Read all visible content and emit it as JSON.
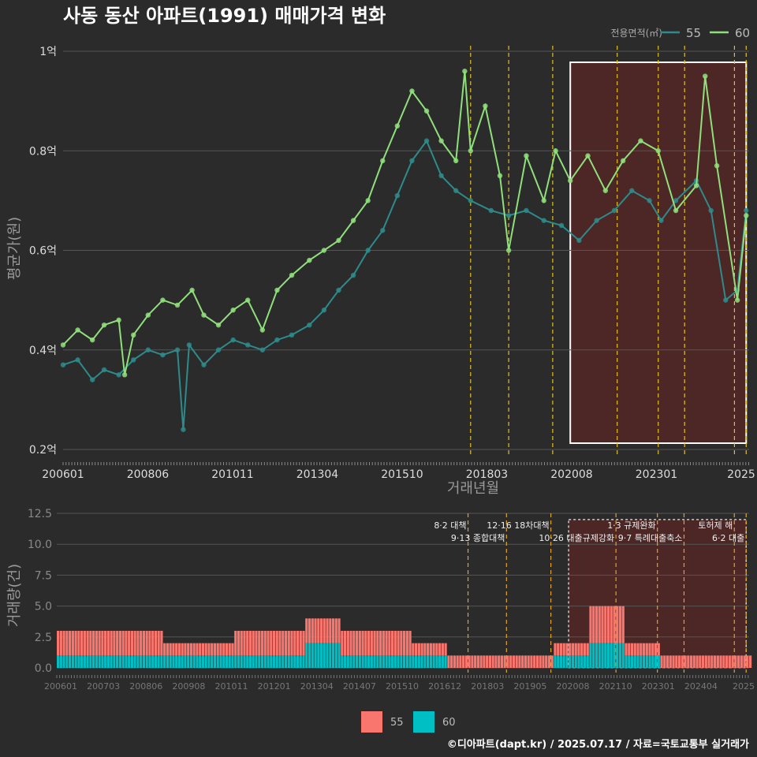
{
  "title": "사동 동산 아파트(1991) 매매가격 변화",
  "footer": "©디아파트(dapt.kr) / 2025.07.17 / 자료=국토교통부 실거래가",
  "colors": {
    "background": "#2b2b2b",
    "series55_price": "#2e8b8b",
    "series60_price": "#8fe07a",
    "series55_volume": "#f8766d",
    "series60_volume": "#00bfc4",
    "event_line": "#e6c21a",
    "highlight_fill": "#5a2525"
  },
  "chart_data": [
    {
      "type": "line",
      "title": "사동 동산 아파트(1991) 매매가격 변화",
      "xlabel": "거래년월",
      "ylabel": "평균가(원)",
      "legend_title": "전용면적(㎡)",
      "legend_position": "top-right",
      "x_tick_labels": [
        "200601",
        "200806",
        "201011",
        "201304",
        "201510",
        "201803",
        "202008",
        "202301",
        "2025"
      ],
      "y_tick_labels": [
        "0.2억",
        "0.4억",
        "0.6억",
        "0.8억",
        "1억"
      ],
      "ylim": [
        0.2,
        1.0
      ],
      "y_unit": "억",
      "grid": true,
      "highlight_range": [
        "2020-06",
        "2025-06"
      ],
      "event_dates": [
        "2017-08",
        "2018-09",
        "2019-12",
        "2021-10",
        "2022-12",
        "2023-09",
        "2025-02",
        "2025-06"
      ],
      "series": [
        {
          "name": "55",
          "points": [
            [
              "2006-01",
              0.37
            ],
            [
              "2006-06",
              0.38
            ],
            [
              "2006-11",
              0.34
            ],
            [
              "2007-03",
              0.36
            ],
            [
              "2007-08",
              0.35
            ],
            [
              "2008-01",
              0.38
            ],
            [
              "2008-06",
              0.4
            ],
            [
              "2008-11",
              0.39
            ],
            [
              "2009-04",
              0.4
            ],
            [
              "2009-06",
              0.24
            ],
            [
              "2009-08",
              0.41
            ],
            [
              "2010-01",
              0.37
            ],
            [
              "2010-06",
              0.4
            ],
            [
              "2010-11",
              0.42
            ],
            [
              "2011-04",
              0.41
            ],
            [
              "2011-09",
              0.4
            ],
            [
              "2012-02",
              0.42
            ],
            [
              "2012-07",
              0.43
            ],
            [
              "2013-01",
              0.45
            ],
            [
              "2013-06",
              0.48
            ],
            [
              "2013-11",
              0.52
            ],
            [
              "2014-04",
              0.55
            ],
            [
              "2014-09",
              0.6
            ],
            [
              "2015-02",
              0.64
            ],
            [
              "2015-07",
              0.71
            ],
            [
              "2015-12",
              0.78
            ],
            [
              "2016-05",
              0.82
            ],
            [
              "2016-10",
              0.75
            ],
            [
              "2017-03",
              0.72
            ],
            [
              "2017-08",
              0.7
            ],
            [
              "2018-03",
              0.68
            ],
            [
              "2018-09",
              0.67
            ],
            [
              "2019-03",
              0.68
            ],
            [
              "2019-09",
              0.66
            ],
            [
              "2020-03",
              0.65
            ],
            [
              "2020-09",
              0.62
            ],
            [
              "2021-03",
              0.66
            ],
            [
              "2021-09",
              0.68
            ],
            [
              "2022-03",
              0.72
            ],
            [
              "2022-09",
              0.7
            ],
            [
              "2023-01",
              0.66
            ],
            [
              "2023-06",
              0.7
            ],
            [
              "2024-01",
              0.74
            ],
            [
              "2024-06",
              0.68
            ],
            [
              "2024-11",
              0.5
            ],
            [
              "2025-03",
              0.52
            ],
            [
              "2025-06",
              0.68
            ]
          ]
        },
        {
          "name": "60",
          "points": [
            [
              "2006-01",
              0.41
            ],
            [
              "2006-06",
              0.44
            ],
            [
              "2006-11",
              0.42
            ],
            [
              "2007-03",
              0.45
            ],
            [
              "2007-08",
              0.46
            ],
            [
              "2007-10",
              0.35
            ],
            [
              "2008-01",
              0.43
            ],
            [
              "2008-06",
              0.47
            ],
            [
              "2008-11",
              0.5
            ],
            [
              "2009-04",
              0.49
            ],
            [
              "2009-09",
              0.52
            ],
            [
              "2010-01",
              0.47
            ],
            [
              "2010-06",
              0.45
            ],
            [
              "2010-11",
              0.48
            ],
            [
              "2011-04",
              0.5
            ],
            [
              "2011-09",
              0.44
            ],
            [
              "2012-02",
              0.52
            ],
            [
              "2012-07",
              0.55
            ],
            [
              "2013-01",
              0.58
            ],
            [
              "2013-06",
              0.6
            ],
            [
              "2013-11",
              0.62
            ],
            [
              "2014-04",
              0.66
            ],
            [
              "2014-09",
              0.7
            ],
            [
              "2015-02",
              0.78
            ],
            [
              "2015-07",
              0.85
            ],
            [
              "2015-12",
              0.92
            ],
            [
              "2016-05",
              0.88
            ],
            [
              "2016-10",
              0.82
            ],
            [
              "2017-03",
              0.78
            ],
            [
              "2017-06",
              0.96
            ],
            [
              "2017-08",
              0.8
            ],
            [
              "2018-01",
              0.89
            ],
            [
              "2018-06",
              0.75
            ],
            [
              "2018-09",
              0.6
            ],
            [
              "2019-03",
              0.79
            ],
            [
              "2019-09",
              0.7
            ],
            [
              "2020-01",
              0.8
            ],
            [
              "2020-06",
              0.74
            ],
            [
              "2020-12",
              0.79
            ],
            [
              "2021-06",
              0.72
            ],
            [
              "2021-12",
              0.78
            ],
            [
              "2022-06",
              0.82
            ],
            [
              "2022-12",
              0.8
            ],
            [
              "2023-06",
              0.68
            ],
            [
              "2024-01",
              0.73
            ],
            [
              "2024-04",
              0.95
            ],
            [
              "2024-08",
              0.77
            ],
            [
              "2025-03",
              0.5
            ],
            [
              "2025-06",
              0.67
            ]
          ]
        }
      ]
    },
    {
      "type": "bar",
      "xlabel": "",
      "ylabel": "거래량(건)",
      "stacked": true,
      "legend_position": "bottom",
      "x_tick_labels": [
        "200601",
        "200703",
        "200806",
        "200908",
        "201011",
        "201201",
        "201304",
        "201407",
        "201510",
        "201612",
        "201803",
        "201905",
        "202008",
        "202110",
        "202301",
        "202404",
        "2025"
      ],
      "y_tick_labels": [
        "0.0",
        "2.5",
        "5.0",
        "7.5",
        "10.0",
        "12.5"
      ],
      "ylim": [
        0,
        12.5
      ],
      "annotations": [
        {
          "date": "2017-08",
          "label": "8·2 대책"
        },
        {
          "date": "2018-09",
          "label": "9·13 종합대책"
        },
        {
          "date": "2019-12",
          "label": "12·16 18차대책"
        },
        {
          "date": "2021-10",
          "label": "10·26 대출규제강화"
        },
        {
          "date": "2022-12",
          "label": "1·3 규제완화"
        },
        {
          "date": "2023-09",
          "label": "9·7 특례대출축소"
        },
        {
          "date": "2025-02",
          "label": "토허제 해"
        },
        {
          "date": "2025-06",
          "label": "6·2 대출"
        }
      ],
      "series": [
        {
          "name": "55",
          "values_by_year": {
            "2006": 2,
            "2007": 2,
            "2008": 2,
            "2009": 1,
            "2010": 1,
            "2011": 2,
            "2012": 2,
            "2013": 2,
            "2014": 2,
            "2015": 2,
            "2016": 1,
            "2017": 1,
            "2018": 1,
            "2019": 1,
            "2020": 1,
            "2021": 3,
            "2022": 1,
            "2023": 1,
            "2024": 1,
            "2025": 1
          }
        },
        {
          "name": "60",
          "values_by_year": {
            "2006": 1,
            "2007": 1,
            "2008": 1,
            "2009": 1,
            "2010": 1,
            "2011": 1,
            "2012": 1,
            "2013": 2,
            "2014": 1,
            "2015": 1,
            "2016": 1,
            "2017": 0,
            "2018": 0,
            "2019": 0,
            "2020": 1,
            "2021": 2,
            "2022": 1,
            "2023": 0,
            "2024": 0,
            "2025": 0
          }
        }
      ]
    }
  ]
}
